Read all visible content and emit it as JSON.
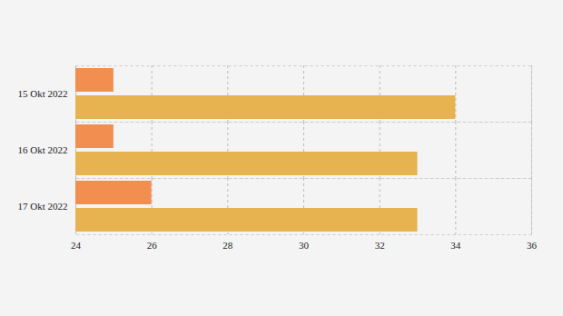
{
  "chart_data": {
    "type": "bar",
    "orientation": "horizontal",
    "categories": [
      "15 Okt 2022",
      "16 Okt 2022",
      "17 Okt 2022"
    ],
    "series": [
      {
        "color": "#f28e50",
        "values": [
          25,
          25,
          26
        ]
      },
      {
        "color": "#e6b350",
        "values": [
          34,
          33,
          33
        ]
      }
    ],
    "xlim": [
      24,
      36
    ],
    "xticks": [
      24,
      26,
      28,
      30,
      32,
      34,
      36
    ],
    "grid": true
  }
}
